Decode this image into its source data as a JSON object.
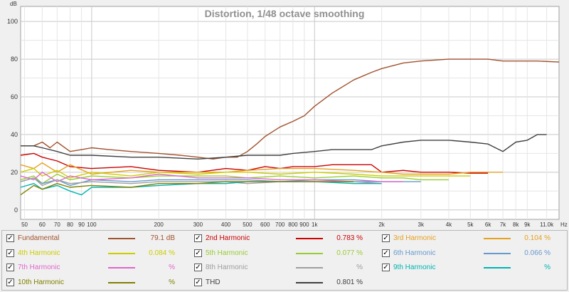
{
  "chart_data": {
    "type": "line",
    "title": "Distortion, 1/48 octave smoothing",
    "ylabel": "dB",
    "xunit": "Hz",
    "xscale": "log",
    "xlim": [
      48,
      12500
    ],
    "ylim": [
      -5,
      108
    ],
    "grid": true,
    "legend_placement": "bottom",
    "yticks": [
      "0",
      "20",
      "40",
      "60",
      "80",
      "100"
    ],
    "xticks": [
      {
        "v": 50,
        "label": "50"
      },
      {
        "v": 60,
        "label": "60"
      },
      {
        "v": 70,
        "label": "70"
      },
      {
        "v": 80,
        "label": "80"
      },
      {
        "v": 90,
        "label": "90"
      },
      {
        "v": 100,
        "label": "100"
      },
      {
        "v": 200,
        "label": "200"
      },
      {
        "v": 300,
        "label": "300"
      },
      {
        "v": 400,
        "label": "400"
      },
      {
        "v": 500,
        "label": "500"
      },
      {
        "v": 600,
        "label": "600"
      },
      {
        "v": 700,
        "label": "700"
      },
      {
        "v": 800,
        "label": "800"
      },
      {
        "v": 900,
        "label": "900"
      },
      {
        "v": 1000,
        "label": "1k"
      },
      {
        "v": 2000,
        "label": "2k"
      },
      {
        "v": 3000,
        "label": "3k"
      },
      {
        "v": 4000,
        "label": "4k"
      },
      {
        "v": 5000,
        "label": "5k"
      },
      {
        "v": 6000,
        "label": "6k"
      },
      {
        "v": 7000,
        "label": "7k"
      },
      {
        "v": 8000,
        "label": "8k"
      },
      {
        "v": 9000,
        "label": "9k"
      },
      {
        "v": 11000,
        "label": "11.0k"
      }
    ],
    "series": [
      {
        "name": "Fundamental",
        "color": "#a0522d",
        "value": "79.1 dB",
        "checked": true,
        "x": [
          48,
          55,
          60,
          65,
          70,
          80,
          90,
          100,
          120,
          150,
          200,
          250,
          300,
          350,
          400,
          450,
          500,
          550,
          600,
          700,
          800,
          900,
          1000,
          1200,
          1500,
          1800,
          2000,
          2500,
          3000,
          4000,
          5000,
          6000,
          7000,
          8000,
          9000,
          10000,
          12500
        ],
        "y": [
          34,
          34,
          36,
          33,
          36,
          31,
          32,
          33,
          32,
          31,
          30,
          29,
          28,
          27,
          28,
          28,
          31,
          35,
          39,
          44,
          47,
          50,
          55,
          62,
          69,
          73,
          75,
          78,
          79,
          80,
          80,
          80,
          79,
          79,
          79,
          79,
          78.5
        ]
      },
      {
        "name": "2nd Harmonic",
        "color": "#cc0000",
        "value": "0.783 %",
        "checked": true,
        "x": [
          48,
          55,
          60,
          70,
          80,
          100,
          150,
          200,
          300,
          400,
          500,
          600,
          700,
          800,
          1000,
          1200,
          1500,
          1800,
          2000,
          2500,
          3000,
          4000,
          5000,
          6000
        ],
        "y": [
          29,
          30,
          28,
          26,
          23,
          22,
          23,
          21,
          20,
          22,
          21,
          23,
          22,
          23,
          23,
          24,
          24,
          24,
          20,
          21,
          20,
          20,
          19.5,
          19.5
        ]
      },
      {
        "name": "3rd Harmonic",
        "color": "#e6a020",
        "value": "0.104 %",
        "checked": true,
        "x": [
          48,
          55,
          60,
          70,
          80,
          100,
          150,
          200,
          300,
          400,
          500,
          700,
          1000,
          1500,
          2000,
          2500,
          3000,
          4000,
          5000,
          6000,
          7000
        ],
        "y": [
          24,
          22,
          25,
          20,
          24,
          19,
          21,
          20,
          20,
          20,
          21,
          22,
          22,
          21,
          20,
          19,
          19,
          19,
          20,
          20,
          20
        ]
      },
      {
        "name": "4th Harmonic",
        "color": "#cccc00",
        "value": "0.084 %",
        "checked": true,
        "x": [
          48,
          55,
          60,
          70,
          80,
          100,
          150,
          200,
          300,
          400,
          500,
          700,
          1000,
          1500,
          2000,
          2500,
          3000,
          4000,
          5000
        ],
        "y": [
          20,
          22,
          18,
          21,
          17,
          20,
          18,
          20,
          19,
          20,
          20,
          19,
          20,
          19,
          18,
          18,
          18,
          18,
          18
        ]
      },
      {
        "name": "5th Harmonic",
        "color": "#99cc33",
        "value": "0.077 %",
        "checked": true,
        "x": [
          48,
          55,
          60,
          70,
          80,
          100,
          150,
          200,
          300,
          400,
          500,
          700,
          1000,
          1500,
          2000,
          2500,
          3000,
          4000
        ],
        "y": [
          16,
          18,
          14,
          19,
          16,
          18,
          17,
          18,
          18,
          18,
          17,
          18,
          17,
          18,
          17,
          17,
          16,
          16
        ]
      },
      {
        "name": "6th Harmonic",
        "color": "#6699cc",
        "value": "0.066 %",
        "checked": true,
        "x": [
          48,
          55,
          60,
          70,
          80,
          100,
          150,
          200,
          300,
          400,
          500,
          700,
          1000,
          1500,
          2000,
          2500,
          3000
        ],
        "y": [
          15,
          17,
          14,
          16,
          13,
          16,
          15,
          16,
          16,
          16,
          16,
          15,
          16,
          16,
          15,
          15,
          15
        ]
      },
      {
        "name": "7th Harmonic",
        "color": "#e066cc",
        "value": "%",
        "checked": true,
        "x": [
          48,
          55,
          60,
          70,
          80,
          100,
          150,
          200,
          300,
          400,
          500,
          700,
          1000,
          1500,
          2000,
          2500
        ],
        "y": [
          18,
          16,
          20,
          15,
          18,
          16,
          17,
          19,
          17,
          17,
          17,
          16,
          16,
          15,
          15,
          15
        ]
      },
      {
        "name": "8th Harmonic",
        "color": "#9e9e9e",
        "value": "%",
        "checked": true,
        "x": [
          48,
          55,
          60,
          70,
          80,
          100,
          150,
          200,
          300,
          400,
          500,
          700,
          1000,
          1500,
          2000
        ],
        "y": [
          15,
          17,
          13,
          16,
          14,
          15,
          14,
          15,
          15,
          15,
          14,
          15,
          15,
          15,
          14
        ]
      },
      {
        "name": "9th Harmonic",
        "color": "#00b3b3",
        "value": "%",
        "checked": true,
        "x": [
          48,
          55,
          60,
          70,
          80,
          90,
          100,
          150,
          200,
          300,
          400,
          500,
          700,
          1000,
          1500,
          2000
        ],
        "y": [
          12,
          14,
          11,
          13,
          10,
          8,
          12,
          12,
          13,
          14,
          14,
          15,
          15,
          15,
          14,
          14
        ]
      },
      {
        "name": "10th Harmonic",
        "color": "#808000",
        "value": "%",
        "checked": true,
        "x": [
          48,
          55,
          60,
          70,
          80,
          100,
          150,
          200,
          300,
          400,
          500,
          700,
          1000,
          1500
        ],
        "y": [
          8,
          13,
          11,
          14,
          12,
          13,
          12,
          14,
          14,
          15,
          15,
          15,
          15,
          15
        ]
      },
      {
        "name": "THD",
        "color": "#404040",
        "value": "0.801 %",
        "checked": true,
        "x": [
          48,
          55,
          60,
          70,
          80,
          100,
          150,
          200,
          300,
          400,
          500,
          600,
          700,
          800,
          1000,
          1200,
          1500,
          1800,
          2000,
          2500,
          3000,
          4000,
          5000,
          6000,
          7000,
          8000,
          9000,
          10000,
          11000
        ],
        "y": [
          34,
          34,
          33,
          31,
          29,
          29,
          28,
          28,
          27,
          28,
          29,
          29,
          29,
          30,
          31,
          32,
          32,
          32,
          34,
          36,
          37,
          37,
          36,
          35,
          31,
          36,
          37,
          40,
          40
        ]
      }
    ]
  }
}
